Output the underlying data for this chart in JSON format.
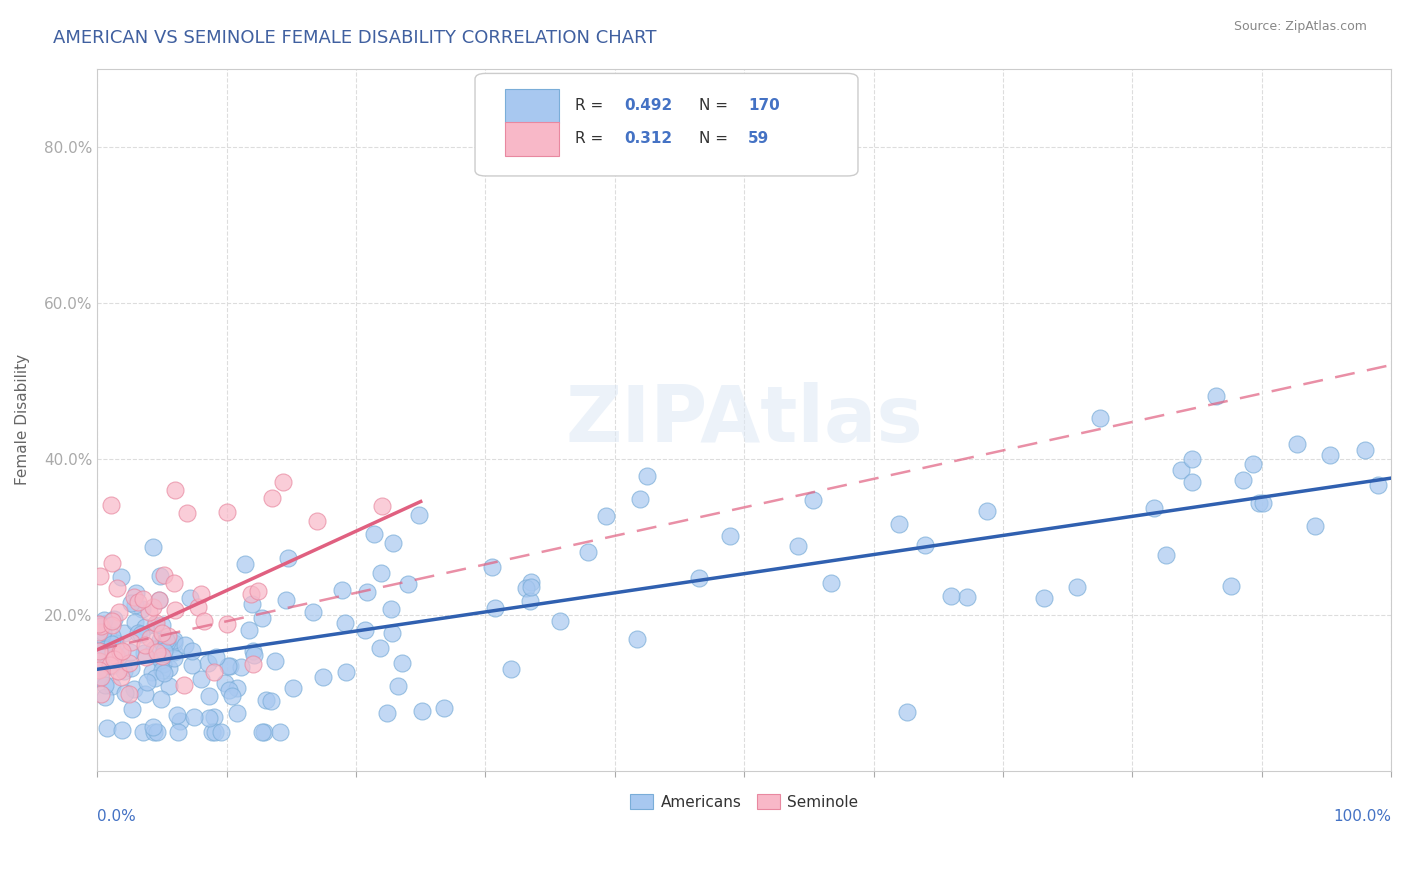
{
  "title": "AMERICAN VS SEMINOLE FEMALE DISABILITY CORRELATION CHART",
  "source": "Source: ZipAtlas.com",
  "ylabel": "Female Disability",
  "watermark": "ZIPAtlas",
  "legend": {
    "blue_R": "0.492",
    "blue_N": "170",
    "pink_R": "0.312",
    "pink_N": "59"
  },
  "blue_color": "#a8c8f0",
  "blue_edge_color": "#7aadd8",
  "blue_line_color": "#3060b0",
  "pink_color": "#f8b8c8",
  "pink_edge_color": "#e888a0",
  "pink_line_color": "#e06080",
  "title_color": "#4060a0",
  "axis_label_color": "#4472c4",
  "background_color": "#ffffff",
  "grid_color": "#dddddd",
  "xlim": [
    0,
    100
  ],
  "ylim": [
    0,
    90
  ],
  "blue_regression_y0": 13.0,
  "blue_regression_y1": 37.5,
  "pink_regression_y0": 15.5,
  "pink_regression_y1": 52.0,
  "pink_solid_x1": 25.0,
  "pink_solid_y1": 34.5
}
